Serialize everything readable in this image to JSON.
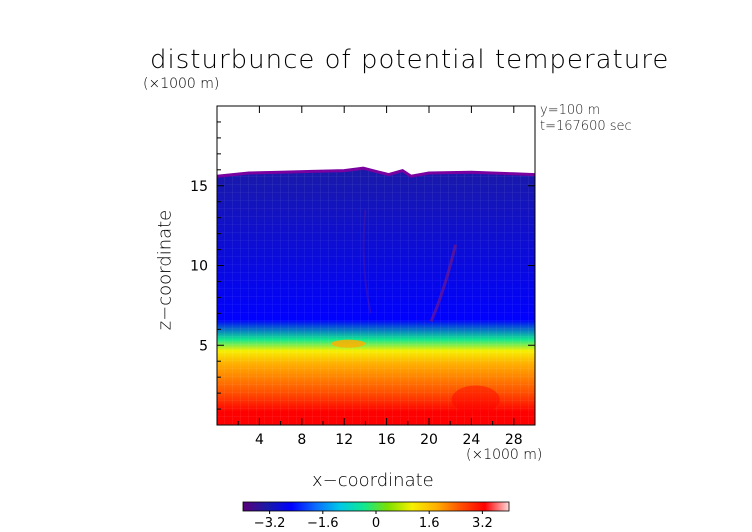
{
  "title": "disturbunce of potential temperature",
  "scale_top": "(×1000 m)",
  "annotations": {
    "y": "y=100 m",
    "t": "t=167600 sec"
  },
  "axes": {
    "xlabel": "x−coordinate",
    "ylabel": "z−coordinate",
    "xunit": "(×1000 m)"
  },
  "chart_data": {
    "type": "heatmap",
    "title": "disturbunce of potential temperature",
    "xlabel": "x−coordinate",
    "ylabel": "z−coordinate",
    "xlim": [
      0,
      30
    ],
    "ylim": [
      0,
      20
    ],
    "x_ticks": [
      4,
      8,
      12,
      16,
      20,
      24,
      28
    ],
    "y_ticks": [
      5,
      10,
      15
    ],
    "colorbar": {
      "range": [
        -4,
        4
      ],
      "ticks": [
        -3.2,
        -1.6,
        0,
        1.6,
        3.2
      ],
      "tick_labels": [
        "−3.2",
        "−1.6",
        "0",
        "1.6",
        "3.2"
      ],
      "colors": [
        "#5a007a",
        "#1a1aa8",
        "#0000ff",
        "#0b6bff",
        "#00c8e8",
        "#10e890",
        "#7ee000",
        "#f6f000",
        "#ffb000",
        "#ff5000",
        "#ff0000",
        "#ffd8d8"
      ]
    },
    "field": {
      "top_boundary_z": 15.9,
      "layers": [
        {
          "z_top": 15.9,
          "value": -3.3
        },
        {
          "z_top": 6.5,
          "value": -2.6
        },
        {
          "z_top": 5.3,
          "value": -0.5
        },
        {
          "z_top": 4.6,
          "value": 0.9
        },
        {
          "z_top": 3.8,
          "value": 1.8
        },
        {
          "z_top": 2.0,
          "value": 2.6
        },
        {
          "z_top": 0.8,
          "value": 3.2
        }
      ]
    }
  }
}
